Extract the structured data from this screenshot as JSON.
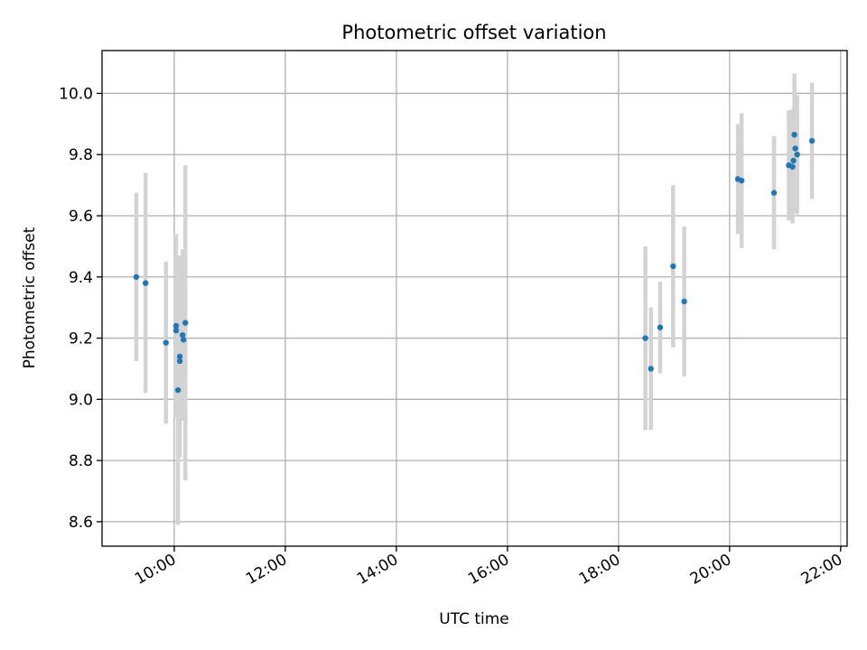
{
  "chart_data": {
    "type": "scatter",
    "title": "Photometric offset variation",
    "xlabel": "UTC time",
    "ylabel": "Photometric offset",
    "xlim": [
      "08:42",
      "22:07"
    ],
    "ylim": [
      8.52,
      10.14
    ],
    "grid": true,
    "x_ticks": [
      "10:00",
      "12:00",
      "14:00",
      "16:00",
      "18:00",
      "20:00",
      "22:00"
    ],
    "y_ticks": [
      "8.6",
      "8.8",
      "9.0",
      "9.2",
      "9.4",
      "9.6",
      "9.8",
      "10.0"
    ],
    "colors": {
      "points": "#1f77b4",
      "errorbars": "#d3d3d3",
      "grid": "#b0b0b0"
    },
    "series": [
      {
        "points": [
          {
            "x": "09:19",
            "y": 9.4,
            "err": 0.275
          },
          {
            "x": "09:29",
            "y": 9.38,
            "err": 0.36
          },
          {
            "x": "09:51",
            "y": 9.185,
            "err": 0.265
          },
          {
            "x": "10:02",
            "y": 9.24,
            "err": 0.3
          },
          {
            "x": "10:02",
            "y": 9.225,
            "err": 0.24
          },
          {
            "x": "10:04",
            "y": 9.03,
            "err": 0.44
          },
          {
            "x": "10:06",
            "y": 9.14,
            "err": 0.33
          },
          {
            "x": "10:06",
            "y": 9.125,
            "err": 0.3
          },
          {
            "x": "10:09",
            "y": 9.21,
            "err": 0.28
          },
          {
            "x": "10:10",
            "y": 9.195,
            "err": 0.25
          },
          {
            "x": "10:12",
            "y": 9.25,
            "err": 0.515
          },
          {
            "x": "18:29",
            "y": 9.2,
            "err": 0.3
          },
          {
            "x": "18:35",
            "y": 9.1,
            "err": 0.2
          },
          {
            "x": "18:45",
            "y": 9.235,
            "err": 0.15
          },
          {
            "x": "18:59",
            "y": 9.435,
            "err": 0.265
          },
          {
            "x": "19:11",
            "y": 9.32,
            "err": 0.245
          },
          {
            "x": "20:09",
            "y": 9.72,
            "err": 0.18
          },
          {
            "x": "20:13",
            "y": 9.715,
            "err": 0.22
          },
          {
            "x": "20:48",
            "y": 9.675,
            "err": 0.185
          },
          {
            "x": "21:04",
            "y": 9.765,
            "err": 0.18
          },
          {
            "x": "21:08",
            "y": 9.76,
            "err": 0.185
          },
          {
            "x": "21:09",
            "y": 9.78,
            "err": 0.17
          },
          {
            "x": "21:10",
            "y": 9.865,
            "err": 0.2
          },
          {
            "x": "21:11",
            "y": 9.82,
            "err": 0.175
          },
          {
            "x": "21:13",
            "y": 9.8,
            "err": 0.195
          },
          {
            "x": "21:29",
            "y": 9.845,
            "err": 0.19
          }
        ]
      }
    ]
  }
}
